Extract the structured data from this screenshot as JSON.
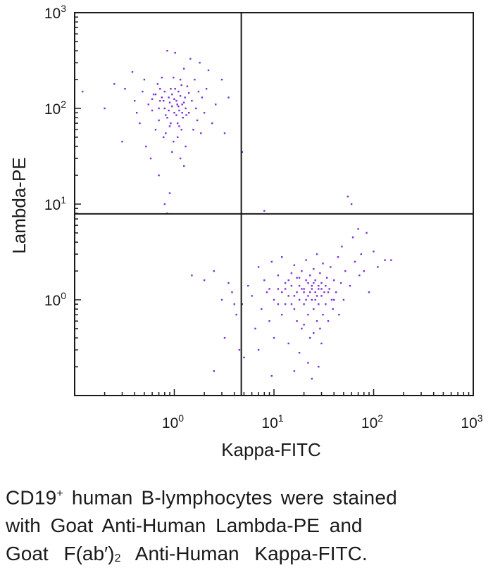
{
  "chart_data": {
    "type": "scatter",
    "title": "",
    "xlabel": "Kappa-FITC",
    "ylabel": "Lambda-PE",
    "xscale": "log",
    "yscale": "log",
    "xlim": [
      0.1,
      1000
    ],
    "ylim": [
      0.1,
      1000
    ],
    "x_ticks": [
      {
        "base": "10",
        "exp": "0",
        "value": 1
      },
      {
        "base": "10",
        "exp": "1",
        "value": 10
      },
      {
        "base": "10",
        "exp": "2",
        "value": 100
      },
      {
        "base": "10",
        "exp": "3",
        "value": 1000
      }
    ],
    "y_ticks": [
      {
        "base": "10",
        "exp": "0",
        "value": 1
      },
      {
        "base": "10",
        "exp": "1",
        "value": 10
      },
      {
        "base": "10",
        "exp": "2",
        "value": 100
      },
      {
        "base": "10",
        "exp": "3",
        "value": 1000
      }
    ],
    "quadrant_gates": {
      "x": 4.7,
      "y": 7.9
    },
    "grid": false,
    "point_color": "#7b2fd6",
    "series": [
      {
        "population": "lambda+",
        "values": [
          [
            0.12,
            150
          ],
          [
            0.2,
            100
          ],
          [
            0.25,
            180
          ],
          [
            0.3,
            45
          ],
          [
            0.32,
            160
          ],
          [
            0.38,
            240
          ],
          [
            0.4,
            120
          ],
          [
            0.42,
            90
          ],
          [
            0.45,
            70
          ],
          [
            0.48,
            150
          ],
          [
            0.5,
            200
          ],
          [
            0.52,
            40
          ],
          [
            0.55,
            110
          ],
          [
            0.58,
            30
          ],
          [
            0.6,
            95
          ],
          [
            0.62,
            140
          ],
          [
            0.65,
            60
          ],
          [
            0.68,
            180
          ],
          [
            0.7,
            75
          ],
          [
            0.72,
            120
          ],
          [
            0.75,
            210
          ],
          [
            0.78,
            50
          ],
          [
            0.8,
            100
          ],
          [
            0.82,
            85
          ],
          [
            0.85,
            400
          ],
          [
            0.88,
            130
          ],
          [
            0.9,
            65
          ],
          [
            0.92,
            160
          ],
          [
            0.95,
            105
          ],
          [
            0.98,
            45
          ],
          [
            1.0,
            90
          ],
          [
            1.02,
            380
          ],
          [
            1.05,
            120
          ],
          [
            1.08,
            70
          ],
          [
            1.1,
            150
          ],
          [
            1.12,
            95
          ],
          [
            1.15,
            200
          ],
          [
            1.18,
            60
          ],
          [
            1.2,
            110
          ],
          [
            1.22,
            80
          ],
          [
            1.25,
            260
          ],
          [
            1.28,
            130
          ],
          [
            1.3,
            40
          ],
          [
            1.35,
            170
          ],
          [
            1.4,
            90
          ],
          [
            1.45,
            330
          ],
          [
            1.5,
            120
          ],
          [
            1.55,
            60
          ],
          [
            1.6,
            200
          ],
          [
            1.65,
            100
          ],
          [
            1.7,
            75
          ],
          [
            1.75,
            150
          ],
          [
            1.8,
            300
          ],
          [
            1.85,
            55
          ],
          [
            1.9,
            130
          ],
          [
            2.0,
            90
          ],
          [
            2.1,
            160
          ],
          [
            2.2,
            250
          ],
          [
            2.4,
            70
          ],
          [
            2.6,
            110
          ],
          [
            3.0,
            200
          ],
          [
            3.2,
            55
          ],
          [
            3.5,
            130
          ],
          [
            4.8,
            35
          ],
          [
            0.65,
            140
          ],
          [
            0.7,
            100
          ],
          [
            0.75,
            130
          ],
          [
            0.8,
            150
          ],
          [
            0.85,
            80
          ],
          [
            0.9,
            115
          ],
          [
            0.95,
            140
          ],
          [
            1.0,
            125
          ],
          [
            1.05,
            85
          ],
          [
            1.1,
            105
          ],
          [
            1.15,
            135
          ],
          [
            1.2,
            90
          ],
          [
            1.25,
            115
          ],
          [
            1.3,
            100
          ],
          [
            0.88,
            95
          ],
          [
            0.92,
            70
          ],
          [
            1.02,
            160
          ],
          [
            1.07,
            110
          ],
          [
            1.12,
            65
          ],
          [
            0.78,
            120
          ],
          [
            0.72,
            160
          ],
          [
            1.18,
            175
          ],
          [
            1.32,
            85
          ],
          [
            0.98,
            210
          ],
          [
            0.6,
            125
          ],
          [
            1.4,
            145
          ],
          [
            0.82,
            55
          ],
          [
            1.08,
            50
          ],
          [
            0.95,
            35
          ],
          [
            1.15,
            30
          ],
          [
            1.25,
            25
          ],
          [
            0.7,
            20
          ],
          [
            0.9,
            13
          ],
          [
            0.8,
            10
          ],
          [
            0.85,
            8
          ]
        ]
      },
      {
        "population": "kappa+",
        "values": [
          [
            1.5,
            1.8
          ],
          [
            2.0,
            1.6
          ],
          [
            2.5,
            2.0
          ],
          [
            3.0,
            1.0
          ],
          [
            3.2,
            0.4
          ],
          [
            3.5,
            1.5
          ],
          [
            3.8,
            1.2
          ],
          [
            4.0,
            0.9
          ],
          [
            4.2,
            0.7
          ],
          [
            4.5,
            0.3
          ],
          [
            5.0,
            0.25
          ],
          [
            5.5,
            1.4
          ],
          [
            6.0,
            1.1
          ],
          [
            6.5,
            0.5
          ],
          [
            7.0,
            2.2
          ],
          [
            7.5,
            0.8
          ],
          [
            8.0,
            1.6
          ],
          [
            8.5,
            1.2
          ],
          [
            9.0,
            0.6
          ],
          [
            9.5,
            2.5
          ],
          [
            10,
            1.0
          ],
          [
            10,
            0.4
          ],
          [
            11,
            1.8
          ],
          [
            11,
            1.3
          ],
          [
            12,
            0.7
          ],
          [
            12,
            2.8
          ],
          [
            13,
            1.5
          ],
          [
            13,
            0.9
          ],
          [
            14,
            1.1
          ],
          [
            14,
            0.35
          ],
          [
            15,
            1.9
          ],
          [
            15,
            1.4
          ],
          [
            16,
            0.8
          ],
          [
            16,
            2.3
          ],
          [
            17,
            1.2
          ],
          [
            17,
            0.6
          ],
          [
            18,
            1.7
          ],
          [
            18,
            1.0
          ],
          [
            19,
            2.0
          ],
          [
            19,
            0.5
          ],
          [
            20,
            1.3
          ],
          [
            20,
            0.9
          ],
          [
            21,
            1.6
          ],
          [
            21,
            2.6
          ],
          [
            22,
            1.1
          ],
          [
            22,
            0.7
          ],
          [
            23,
            1.8
          ],
          [
            23,
            0.4
          ],
          [
            24,
            1.4
          ],
          [
            24,
            1.0
          ],
          [
            25,
            2.1
          ],
          [
            25,
            0.8
          ],
          [
            26,
            1.2
          ],
          [
            26,
            1.6
          ],
          [
            27,
            0.6
          ],
          [
            27,
            3.0
          ],
          [
            28,
            1.3
          ],
          [
            28,
            0.9
          ],
          [
            29,
            1.9
          ],
          [
            29,
            0.5
          ],
          [
            30,
            1.1
          ],
          [
            30,
            1.5
          ],
          [
            31,
            2.4
          ],
          [
            31,
            0.7
          ],
          [
            32,
            1.2
          ],
          [
            33,
            0.9
          ],
          [
            34,
            1.7
          ],
          [
            35,
            0.6
          ],
          [
            36,
            1.3
          ],
          [
            37,
            2.2
          ],
          [
            38,
            1.0
          ],
          [
            39,
            0.8
          ],
          [
            40,
            1.6
          ],
          [
            42,
            1.2
          ],
          [
            44,
            2.8
          ],
          [
            45,
            0.7
          ],
          [
            47,
            1.5
          ],
          [
            48,
            3.6
          ],
          [
            50,
            1.0
          ],
          [
            52,
            2.0
          ],
          [
            55,
            12
          ],
          [
            58,
            1.4
          ],
          [
            60,
            10
          ],
          [
            62,
            4.5
          ],
          [
            65,
            2.5
          ],
          [
            70,
            5.5
          ],
          [
            72,
            1.8
          ],
          [
            75,
            3.0
          ],
          [
            80,
            2.0
          ],
          [
            85,
            5.0
          ],
          [
            90,
            1.2
          ],
          [
            100,
            3.2
          ],
          [
            110,
            2.2
          ],
          [
            130,
            2.6
          ],
          [
            150,
            2.6
          ],
          [
            12,
            1.2
          ],
          [
            14,
            1.6
          ],
          [
            16,
            1.1
          ],
          [
            18,
            1.4
          ],
          [
            20,
            1.2
          ],
          [
            22,
            1.5
          ],
          [
            24,
            1.3
          ],
          [
            26,
            1.0
          ],
          [
            28,
            1.4
          ],
          [
            30,
            1.3
          ],
          [
            15,
            0.9
          ],
          [
            19,
            1.3
          ],
          [
            23,
            1.2
          ],
          [
            27,
            1.1
          ],
          [
            17,
            1.7
          ],
          [
            21,
            1.0
          ],
          [
            25,
            1.5
          ],
          [
            13,
            1.3
          ],
          [
            33,
            1.4
          ],
          [
            9,
            1.3
          ],
          [
            11,
            0.9
          ],
          [
            35,
            1.2
          ],
          [
            40,
            1.0
          ],
          [
            20,
            0.55
          ],
          [
            25,
            0.45
          ],
          [
            30,
            0.35
          ],
          [
            18,
            0.28
          ],
          [
            22,
            0.22
          ],
          [
            28,
            0.2
          ],
          [
            16,
            0.18
          ],
          [
            24,
            0.15
          ],
          [
            8,
            8.5
          ],
          [
            9.5,
            0.16
          ],
          [
            7,
            0.3
          ],
          [
            4.8,
            0.9
          ],
          [
            2.5,
            0.18
          ]
        ]
      }
    ]
  },
  "caption": {
    "line1_a": "CD19",
    "line1_sup": "+",
    "line1_b": " human B-lymphocytes were stained",
    "line2": "with Goat Anti-Human Lambda-PE and",
    "line3_a": "Goat F(ab′)",
    "line3_sub": "2",
    "line3_b": " Anti-Human Kappa-FITC."
  }
}
